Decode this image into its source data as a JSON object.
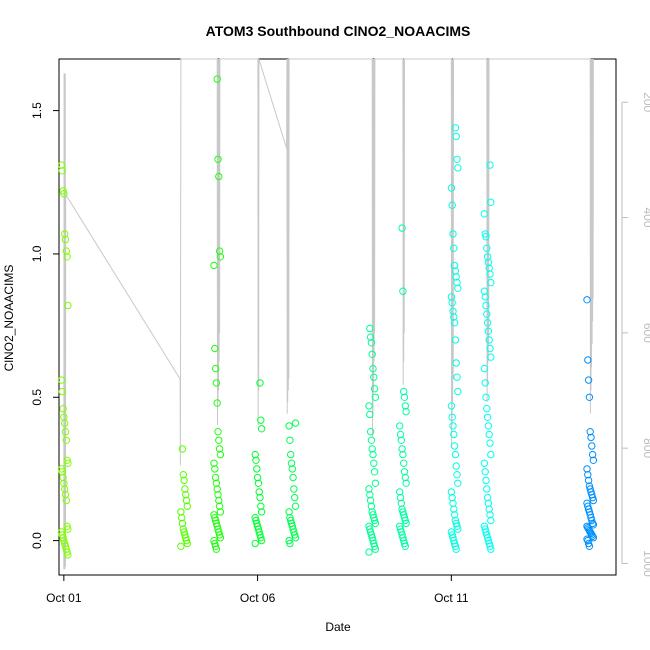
{
  "chart_data": {
    "type": "scatter",
    "title": "ATOM3 Southbound ClNO2_NOAACIMS",
    "xlabel": "Date",
    "ylabel": "ClNO2_NOAACIMS",
    "x_axis": {
      "type": "date",
      "range": [
        "2017-09-30T21:00",
        "2017-10-15T06:00"
      ],
      "ticks": [
        {
          "label": "Oct 01",
          "value": "2017-10-01"
        },
        {
          "label": "Oct 06",
          "value": "2017-10-06"
        },
        {
          "label": "Oct 11",
          "value": "2017-10-11"
        }
      ]
    },
    "y_axis": {
      "range": [
        -0.12,
        1.68
      ],
      "ticks": [
        {
          "label": "0.0",
          "value": 0.0
        },
        {
          "label": "0.5",
          "value": 0.5
        },
        {
          "label": "1.0",
          "value": 1.0
        },
        {
          "label": "1.5",
          "value": 1.5
        }
      ]
    },
    "y2_axis": {
      "quantity": "pressure",
      "reversed": true,
      "range": [
        1020,
        125
      ],
      "ticks": [
        {
          "label": "200",
          "value": 200
        },
        {
          "label": "400",
          "value": 400
        },
        {
          "label": "600",
          "value": 600
        },
        {
          "label": "800",
          "value": 800
        },
        {
          "label": "1000",
          "value": 1000
        }
      ]
    },
    "grid": false,
    "legend": "none",
    "colors": {
      "pressure_line": "#c8c8c8",
      "axis": "#000000",
      "secondary_axis": "#bdbdbd",
      "point_scale": [
        "#7fff00",
        "#00ff40",
        "#00ffbf",
        "#00ffff",
        "#0080ff"
      ]
    },
    "series": [
      {
        "kind": "points",
        "flights": [
          {
            "date": "2017-10-01T00:30",
            "color": "#80ff00",
            "values": [
              1.31,
              1.29,
              1.22,
              1.21,
              1.07,
              1.05,
              1.01,
              0.99,
              0.82,
              0.56,
              0.52,
              0.46,
              0.43,
              0.41,
              0.38,
              0.35,
              0.28,
              0.27,
              0.25,
              0.24,
              0.22,
              0.2,
              0.18,
              0.16,
              0.14,
              0.05,
              0.04,
              0.03,
              0.02,
              0.01,
              0.0,
              -0.01,
              -0.02,
              -0.03,
              -0.04,
              -0.05
            ]
          },
          {
            "date": "2017-10-04T02:30",
            "color": "#55ff00",
            "values": [
              0.32,
              0.23,
              0.21,
              0.18,
              0.16,
              0.14,
              0.12,
              0.1,
              0.08,
              0.06,
              0.04,
              0.03,
              0.02,
              0.01,
              0.0,
              -0.01,
              -0.02
            ]
          },
          {
            "date": "2017-10-04T23:00",
            "color": "#20ff10",
            "values": [
              1.61,
              1.33,
              1.27,
              1.01,
              0.99,
              0.96,
              0.67,
              0.6,
              0.55,
              0.48,
              0.38,
              0.35,
              0.32,
              0.3,
              0.27,
              0.25,
              0.22,
              0.2,
              0.18,
              0.16,
              0.14,
              0.12,
              0.1,
              0.09,
              0.08,
              0.07,
              0.06,
              0.05,
              0.04,
              0.03,
              0.02,
              0.01,
              0.0,
              -0.01,
              -0.02,
              -0.03
            ]
          },
          {
            "date": "2017-10-06T00:30",
            "color": "#00ff30",
            "values": [
              0.55,
              0.42,
              0.39,
              0.3,
              0.28,
              0.25,
              0.22,
              0.2,
              0.17,
              0.15,
              0.12,
              0.1,
              0.08,
              0.07,
              0.06,
              0.05,
              0.04,
              0.03,
              0.02,
              0.01,
              0.0,
              -0.01
            ]
          },
          {
            "date": "2017-10-06T21:30",
            "color": "#00ff50",
            "values": [
              0.41,
              0.4,
              0.35,
              0.3,
              0.27,
              0.25,
              0.22,
              0.18,
              0.15,
              0.12,
              0.1,
              0.08,
              0.07,
              0.06,
              0.05,
              0.04,
              0.03,
              0.02,
              0.01,
              0.0,
              -0.01
            ]
          },
          {
            "date": "2017-10-08T23:00",
            "color": "#00ff90",
            "values": [
              0.74,
              0.71,
              0.69,
              0.65,
              0.6,
              0.57,
              0.53,
              0.5,
              0.47,
              0.44,
              0.38,
              0.35,
              0.32,
              0.3,
              0.27,
              0.24,
              0.2,
              0.18,
              0.16,
              0.14,
              0.12,
              0.1,
              0.09,
              0.08,
              0.07,
              0.06,
              0.05,
              0.04,
              0.03,
              0.02,
              0.01,
              0.0,
              -0.01,
              -0.02,
              -0.03,
              -0.04
            ]
          },
          {
            "date": "2017-10-09T18:00",
            "color": "#00ffa0",
            "values": [
              1.09,
              0.87,
              0.52,
              0.5,
              0.47,
              0.45,
              0.4,
              0.37,
              0.35,
              0.32,
              0.3,
              0.27,
              0.24,
              0.22,
              0.2,
              0.17,
              0.15,
              0.13,
              0.11,
              0.1,
              0.09,
              0.08,
              0.07,
              0.06,
              0.05,
              0.04,
              0.03,
              0.02,
              0.01,
              0.0,
              -0.01,
              -0.02
            ]
          },
          {
            "date": "2017-10-11T02:00",
            "color": "#00ffe0",
            "values": [
              1.44,
              1.41,
              1.33,
              1.3,
              1.23,
              1.17,
              1.07,
              1.02,
              0.96,
              0.94,
              0.92,
              0.9,
              0.88,
              0.85,
              0.83,
              0.8,
              0.78,
              0.76,
              0.7,
              0.62,
              0.57,
              0.52,
              0.47,
              0.43,
              0.4,
              0.37,
              0.33,
              0.3,
              0.26,
              0.23,
              0.2,
              0.17,
              0.15,
              0.13,
              0.11,
              0.09,
              0.07,
              0.06,
              0.05,
              0.04,
              0.03,
              0.02,
              0.01,
              0.0,
              -0.01,
              -0.02,
              -0.03
            ]
          },
          {
            "date": "2017-10-11T22:30",
            "color": "#00fff0",
            "values": [
              1.31,
              1.18,
              1.14,
              1.07,
              1.06,
              1.02,
              0.99,
              0.97,
              0.95,
              0.93,
              0.9,
              0.87,
              0.85,
              0.82,
              0.79,
              0.76,
              0.73,
              0.7,
              0.67,
              0.64,
              0.6,
              0.55,
              0.5,
              0.46,
              0.43,
              0.4,
              0.37,
              0.34,
              0.3,
              0.27,
              0.24,
              0.21,
              0.18,
              0.15,
              0.13,
              0.11,
              0.09,
              0.07,
              0.05,
              0.04,
              0.03,
              0.02,
              0.01,
              0.0,
              -0.01,
              -0.02,
              -0.03
            ]
          },
          {
            "date": "2017-10-14T14:00",
            "color": "#0090ff",
            "values": [
              0.84,
              0.63,
              0.56,
              0.5,
              0.38,
              0.36,
              0.33,
              0.3,
              0.28,
              0.25,
              0.23,
              0.21,
              0.19,
              0.18,
              0.17,
              0.16,
              0.15,
              0.14,
              0.13,
              0.12,
              0.11,
              0.1,
              0.09,
              0.08,
              0.07,
              0.06,
              0.055,
              0.05,
              0.045,
              0.04,
              0.035,
              0.03,
              0.025,
              0.02,
              0.015,
              0.01,
              0.005,
              0.0,
              -0.01,
              -0.02
            ]
          }
        ]
      },
      {
        "kind": "pressure-line",
        "color": "#c8c8c8",
        "points": [
          [
            "2017-10-01T00:00",
            1010
          ],
          [
            "2017-10-01T00:10",
            150
          ],
          [
            "2017-10-01T00:20",
            1010
          ],
          [
            "2017-10-01T00:30",
            150
          ],
          [
            "2017-10-01T00:40",
            1010
          ],
          [
            "2017-10-01T00:50",
            150
          ],
          [
            "2017-10-01T01:00",
            1005
          ],
          [
            "2017-10-01T01:10",
            360
          ],
          [
            "2017-10-04T00:00",
            680
          ],
          [
            "2017-10-04T00:10",
            830
          ],
          [
            "2017-10-04T00:20",
            500
          ],
          [
            "2017-10-04T00:30",
            125
          ],
          [
            "2017-10-04T23:00",
            125
          ],
          [
            "2017-10-04T23:10",
            760
          ],
          [
            "2017-10-04T23:20",
            125
          ],
          [
            "2017-10-04T23:30",
            720
          ],
          [
            "2017-10-04T23:40",
            125
          ],
          [
            "2017-10-04T23:50",
            700
          ],
          [
            "2017-10-05T00:00",
            125
          ],
          [
            "2017-10-05T00:10",
            650
          ],
          [
            "2017-10-05T00:20",
            125
          ],
          [
            "2017-10-05T00:30",
            600
          ],
          [
            "2017-10-05T00:40",
            125
          ],
          [
            "2017-10-06T00:10",
            125
          ],
          [
            "2017-10-06T00:20",
            760
          ],
          [
            "2017-10-06T00:30",
            125
          ],
          [
            "2017-10-06T00:40",
            700
          ],
          [
            "2017-10-06T00:50",
            125
          ],
          [
            "2017-10-06T18:00",
            280
          ],
          [
            "2017-10-06T18:10",
            125
          ],
          [
            "2017-10-06T18:20",
            740
          ],
          [
            "2017-10-06T18:30",
            125
          ],
          [
            "2017-10-06T18:40",
            720
          ],
          [
            "2017-10-06T18:50",
            125
          ],
          [
            "2017-10-06T19:00",
            700
          ],
          [
            "2017-10-06T19:10",
            125
          ],
          [
            "2017-10-06T19:20",
            680
          ],
          [
            "2017-10-06T19:30",
            125
          ],
          [
            "2017-10-08T23:00",
            125
          ],
          [
            "2017-10-08T23:10",
            780
          ],
          [
            "2017-10-08T23:20",
            125
          ],
          [
            "2017-10-08T23:30",
            740
          ],
          [
            "2017-10-08T23:40",
            125
          ],
          [
            "2017-10-08T23:50",
            700
          ],
          [
            "2017-10-09T00:00",
            125
          ],
          [
            "2017-10-09T00:10",
            650
          ],
          [
            "2017-10-09T00:20",
            125
          ],
          [
            "2017-10-09T00:30",
            600
          ],
          [
            "2017-10-09T00:40",
            125
          ],
          [
            "2017-10-09T18:00",
            125
          ],
          [
            "2017-10-09T18:10",
            690
          ],
          [
            "2017-10-09T18:20",
            125
          ],
          [
            "2017-10-09T18:30",
            650
          ],
          [
            "2017-10-09T18:40",
            125
          ],
          [
            "2017-10-09T18:50",
            600
          ],
          [
            "2017-10-09T19:00",
            125
          ],
          [
            "2017-10-11T00:00",
            125
          ],
          [
            "2017-10-11T00:10",
            800
          ],
          [
            "2017-10-11T00:20",
            125
          ],
          [
            "2017-10-11T00:30",
            760
          ],
          [
            "2017-10-11T00:40",
            125
          ],
          [
            "2017-10-11T00:50",
            720
          ],
          [
            "2017-10-11T01:00",
            125
          ],
          [
            "2017-10-11T01:10",
            680
          ],
          [
            "2017-10-11T01:20",
            125
          ],
          [
            "2017-10-11T22:00",
            125
          ],
          [
            "2017-10-11T22:10",
            720
          ],
          [
            "2017-10-11T22:20",
            125
          ],
          [
            "2017-10-11T22:30",
            690
          ],
          [
            "2017-10-11T22:40",
            125
          ],
          [
            "2017-10-11T22:50",
            650
          ],
          [
            "2017-10-11T23:00",
            125
          ],
          [
            "2017-10-11T23:10",
            620
          ],
          [
            "2017-10-11T23:20",
            125
          ],
          [
            "2017-10-14T14:00",
            125
          ],
          [
            "2017-10-14T14:10",
            740
          ],
          [
            "2017-10-14T14:20",
            125
          ],
          [
            "2017-10-14T14:30",
            700
          ],
          [
            "2017-10-14T14:40",
            125
          ],
          [
            "2017-10-14T14:50",
            660
          ],
          [
            "2017-10-14T15:00",
            125
          ],
          [
            "2017-10-14T15:10",
            620
          ],
          [
            "2017-10-14T15:20",
            125
          ],
          [
            "2017-10-14T15:30",
            580
          ],
          [
            "2017-10-14T15:40",
            125
          ],
          [
            "2017-10-14T15:50",
            540
          ],
          [
            "2017-10-14T16:00",
            125
          ]
        ]
      }
    ]
  }
}
